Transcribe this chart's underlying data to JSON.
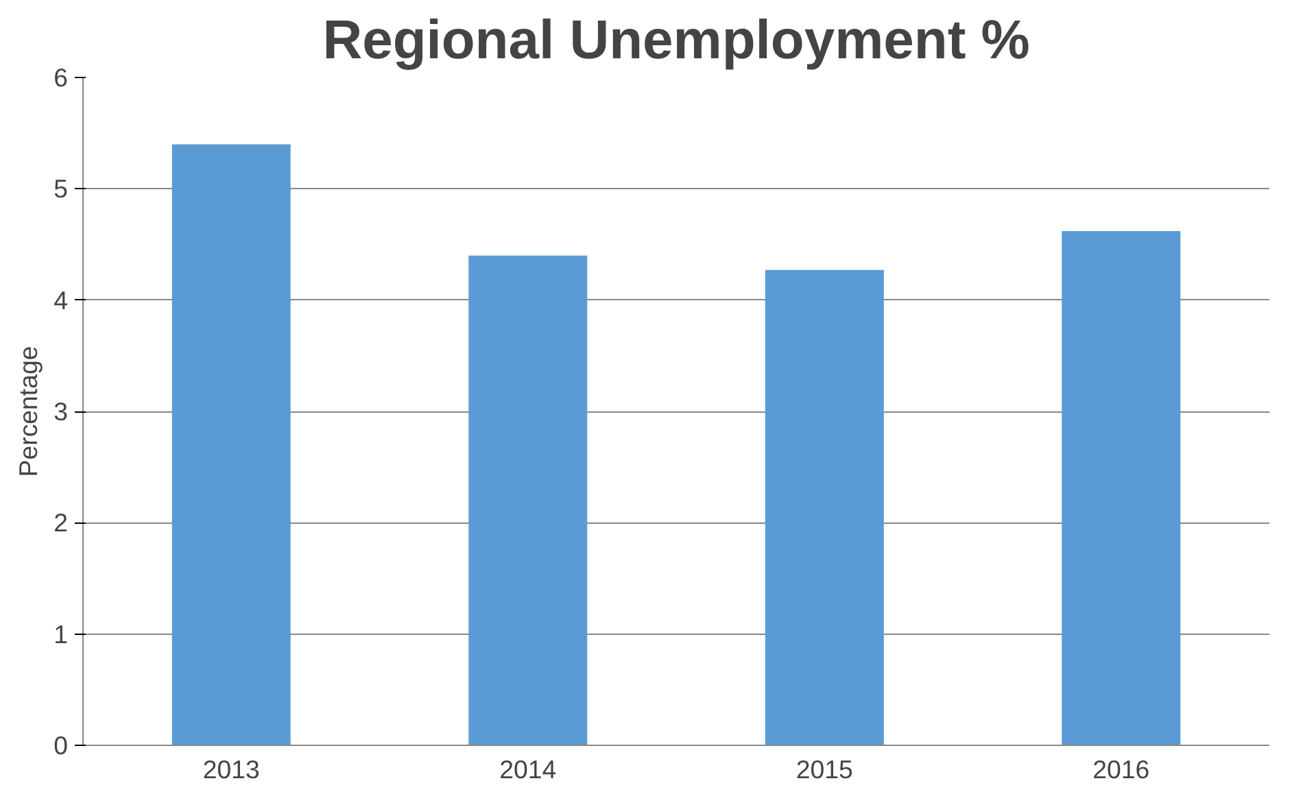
{
  "chart_data": {
    "type": "bar",
    "title": "Regional Unemployment %",
    "ylabel": "Percentage",
    "categories": [
      "2013",
      "2014",
      "2015",
      "2016"
    ],
    "values": [
      5.4,
      4.4,
      4.27,
      4.62
    ],
    "color": "#5b9bd5",
    "ylim": [
      0,
      6
    ],
    "yticks": [
      0,
      1,
      2,
      3,
      4,
      5,
      6
    ],
    "grid": "y"
  }
}
